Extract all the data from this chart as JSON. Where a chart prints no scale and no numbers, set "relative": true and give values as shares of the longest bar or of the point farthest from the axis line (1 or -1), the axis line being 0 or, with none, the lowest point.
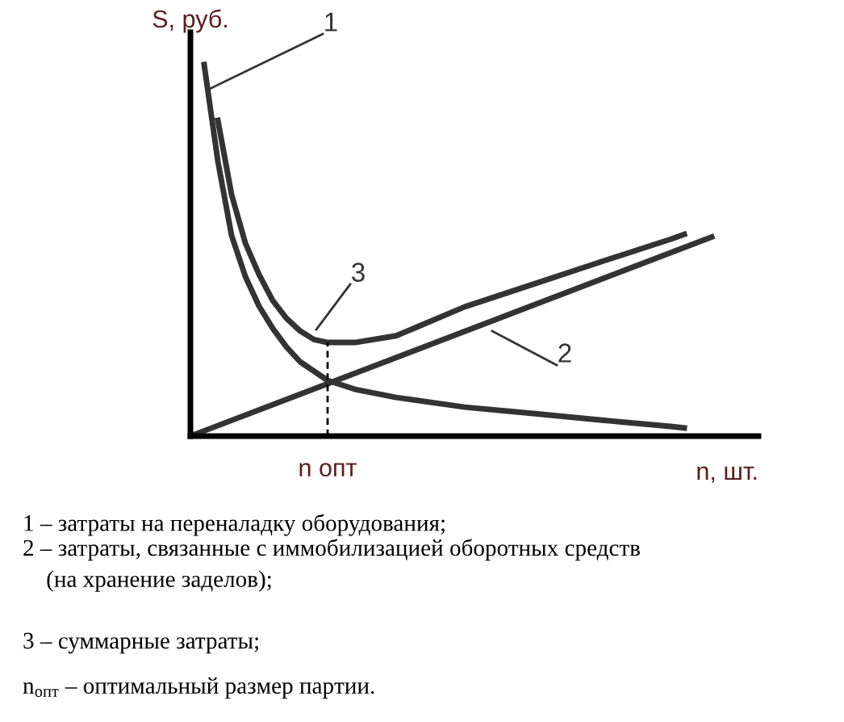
{
  "chart_data": {
    "type": "line",
    "relative": true,
    "ylabel": "S, руб.",
    "xlabel": "n, шт.",
    "categories": [
      null,
      null,
      null,
      null,
      null,
      null,
      null,
      null,
      null,
      null,
      null,
      null,
      null,
      null,
      null,
      null,
      null,
      null,
      null,
      null,
      null,
      null,
      null,
      null,
      null,
      null,
      null,
      null,
      null,
      null,
      null,
      null,
      null,
      null,
      null,
      null,
      null,
      null,
      null
    ],
    "series": [
      {
        "name": "1",
        "color": "#333333",
        "values": [
          null,
          1.0,
          0.74,
          0.54,
          0.43,
          0.35,
          0.29,
          0.24,
          0.2,
          null,
          0.15,
          null,
          0.126,
          null,
          null,
          0.104,
          null,
          null,
          null,
          null,
          0.078,
          null,
          null,
          null,
          null,
          0.061,
          null,
          null,
          null,
          null,
          0.043,
          null,
          null,
          null,
          null,
          0.026,
          0.022,
          null,
          null
        ]
      },
      {
        "name": "2",
        "color": "#333333",
        "values": [
          0,
          null,
          null,
          null,
          null,
          null,
          null,
          null,
          null,
          null,
          null,
          null,
          null,
          null,
          null,
          null,
          null,
          null,
          null,
          null,
          null,
          null,
          null,
          null,
          null,
          null,
          null,
          null,
          null,
          null,
          null,
          null,
          null,
          null,
          null,
          null,
          null,
          null,
          0.536
        ]
      },
      {
        "name": "3",
        "color": "#333333",
        "values": [
          null,
          null,
          0.85,
          0.65,
          0.52,
          0.435,
          0.365,
          0.317,
          0.283,
          0.26,
          0.252,
          null,
          0.252,
          null,
          null,
          0.27,
          null,
          null,
          null,
          null,
          0.348,
          null,
          null,
          null,
          null,
          0.409,
          null,
          null,
          null,
          null,
          0.47,
          null,
          null,
          null,
          null,
          0.53,
          0.543,
          null,
          null
        ]
      }
    ],
    "annotations": [
      "n опт",
      "1 – затраты на переналадку оборудования;",
      "2 – затраты, связанные с иммобилизацией оборотных средств\n    (на хранение заделов);",
      "3 – суммарные затраты;",
      "n$_{опт}$ – оптимальный размер партии."
    ]
  }
}
